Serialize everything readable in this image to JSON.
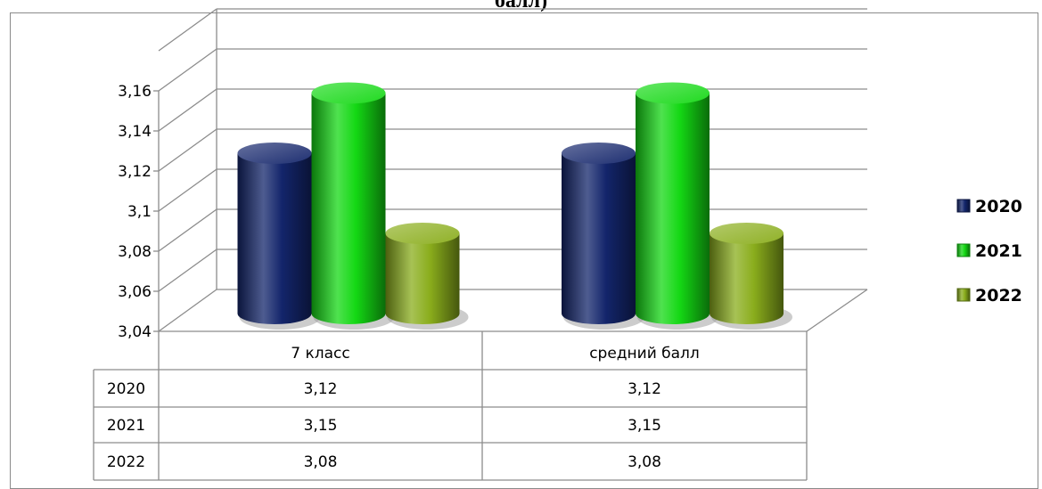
{
  "chart_data": {
    "type": "bar",
    "title": "балл)",
    "categories": [
      "7 класс",
      "средний балл"
    ],
    "series": [
      {
        "name": "2020",
        "values": [
          3.12,
          3.12
        ],
        "color": "#13256b"
      },
      {
        "name": "2021",
        "values": [
          3.15,
          3.15
        ],
        "color": "#14d814"
      },
      {
        "name": "2022",
        "values": [
          3.08,
          3.08
        ],
        "color": "#8aad1c"
      }
    ],
    "yticks": [
      "3,04",
      "3,06",
      "3,08",
      "3,1",
      "3,12",
      "3,14",
      "3,16"
    ],
    "ylim": [
      3.04,
      3.18
    ],
    "table": {
      "header": [
        "7 класс",
        "средний балл"
      ],
      "rows": [
        {
          "label": "2020",
          "cells": [
            "3,12",
            "3,12"
          ]
        },
        {
          "label": "2021",
          "cells": [
            "3,15",
            "3,15"
          ]
        },
        {
          "label": "2022",
          "cells": [
            "3,08",
            "3,08"
          ]
        }
      ]
    },
    "legend_position": "right",
    "grid": true,
    "style": "3d-cylinder"
  }
}
